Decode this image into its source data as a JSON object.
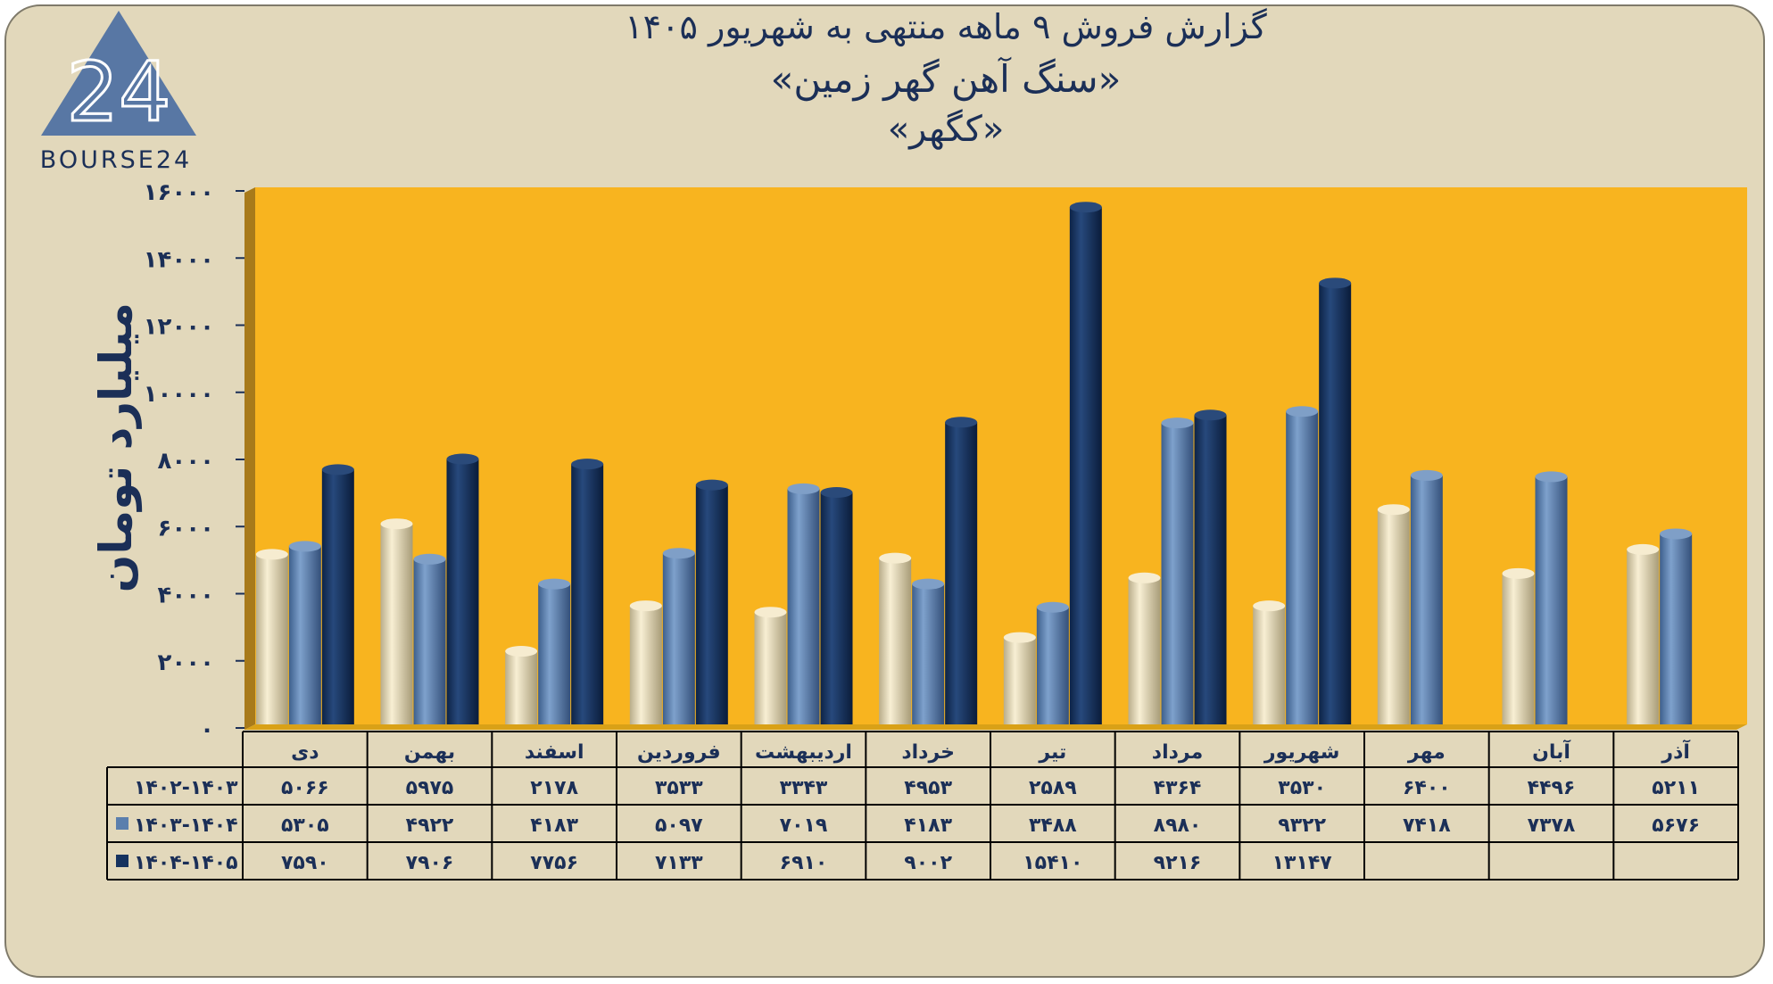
{
  "logo": {
    "brand_text": "BOURSE24",
    "mark_text": "24"
  },
  "header": {
    "title_line1": "گزارش  فروش ۹ ماهه منتهی به شهریور ۱۴۰۵",
    "title_line2": "«سنگ آهن گهر زمین»",
    "title_line3": "«کگهر»"
  },
  "chart_data": {
    "type": "bar",
    "title": "گزارش  فروش ۹ ماهه منتهی به شهریور ۱۴۰۵",
    "subtitle": "«سنگ آهن گهر زمین» «کگهر»",
    "xlabel": "",
    "ylabel": "میلیارد تومان",
    "ylim": [
      0,
      16000
    ],
    "yticks": [
      0,
      2000,
      4000,
      6000,
      8000,
      10000,
      12000,
      14000,
      16000
    ],
    "ytick_labels": [
      "۰",
      "۲۰۰۰",
      "۴۰۰۰",
      "۶۰۰۰",
      "۸۰۰۰",
      "۱۰۰۰۰",
      "۱۲۰۰۰",
      "۱۴۰۰۰",
      "۱۶۰۰۰"
    ],
    "categories": [
      "دی",
      "بهمن",
      "اسفند",
      "فروردین",
      "اردیبهشت",
      "خرداد",
      "تیر",
      "مرداد",
      "شهریور",
      "مهر",
      "آبان",
      "آذر"
    ],
    "series": [
      {
        "name": "۱۴۰۲-۱۴۰۳",
        "color": "#eee2be",
        "values": [
          5066,
          5975,
          2178,
          3533,
          3343,
          4953,
          2589,
          4364,
          3530,
          6400,
          4496,
          5211
        ],
        "labels": [
          "۵۰۶۶",
          "۵۹۷۵",
          "۲۱۷۸",
          "۳۵۳۳",
          "۳۳۴۳",
          "۴۹۵۳",
          "۲۵۸۹",
          "۴۳۶۴",
          "۳۵۳۰",
          "۶۴۰۰",
          "۴۴۹۶",
          "۵۲۱۱"
        ]
      },
      {
        "name": "۱۴۰۳-۱۴۰۴",
        "color": "#5b7fad",
        "values": [
          5305,
          4922,
          4183,
          5097,
          7019,
          4183,
          3488,
          8980,
          9322,
          7418,
          7378,
          5676
        ],
        "labels": [
          "۵۳۰۵",
          "۴۹۲۲",
          "۴۱۸۳",
          "۵۰۹۷",
          "۷۰۱۹",
          "۴۱۸۳",
          "۳۴۸۸",
          "۸۹۸۰",
          "۹۳۲۲",
          "۷۴۱۸",
          "۷۳۷۸",
          "۵۶۷۶"
        ]
      },
      {
        "name": "۱۴۰۴-۱۴۰۵",
        "color": "#15325f",
        "values": [
          7590,
          7906,
          7756,
          7133,
          6910,
          9002,
          15410,
          9216,
          13147,
          null,
          null,
          null
        ],
        "labels": [
          "۷۵۹۰",
          "۷۹۰۶",
          "۷۷۵۶",
          "۷۱۳۳",
          "۶۹۱۰",
          "۹۰۰۲",
          "۱۵۴۱۰",
          "۹۲۱۶",
          "۱۳۱۴۷",
          "",
          "",
          ""
        ]
      }
    ],
    "grid": false,
    "plot_background": "#f8b41f",
    "legend": "data-table"
  }
}
